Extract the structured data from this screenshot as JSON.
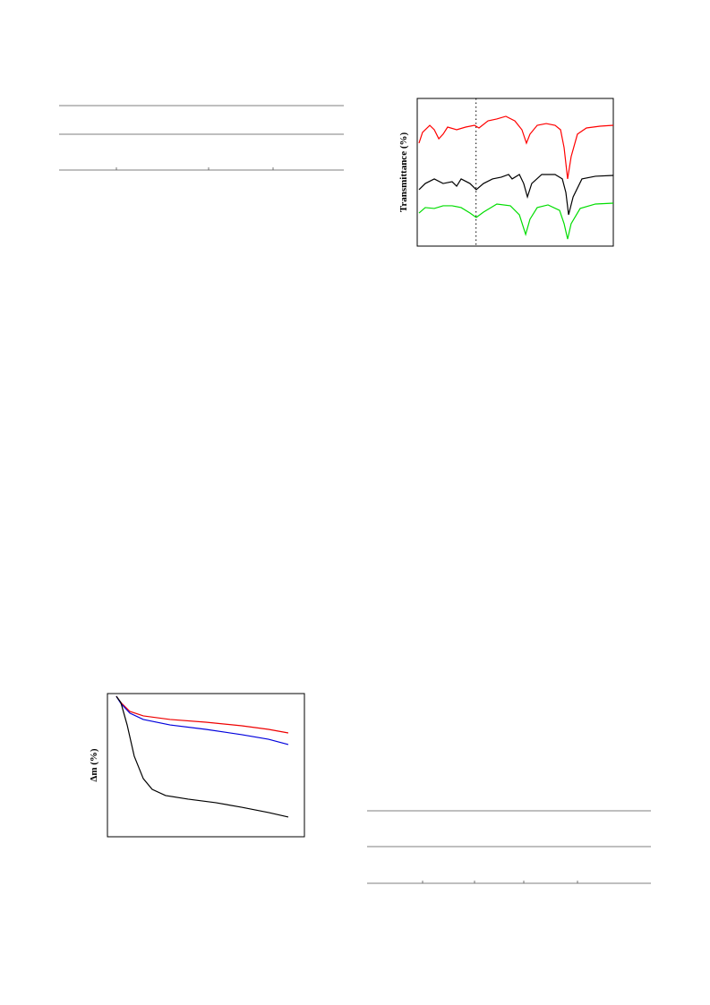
{
  "chart_data": [
    {
      "type": "line",
      "ylabel": "Transmittance (%)",
      "xlim": [
        0,
        100
      ],
      "ylim": [
        0,
        100
      ],
      "vlines": [
        30
      ],
      "series": [
        {
          "color": "#ff0000",
          "x": [
            0.9,
            2.7,
            6.4,
            8.7,
            11.0,
            13.2,
            15.5,
            20.1,
            24.7,
            29.2,
            31.5,
            36.1,
            40.6,
            45.2,
            49.8,
            53.4,
            55.7,
            57.5,
            61.2,
            65.8,
            70.3,
            73.1,
            74.9,
            76.7,
            78.5,
            81.7,
            86.3,
            93.2,
            100
          ],
          "values": [
            69.7,
            77.0,
            81.8,
            78.8,
            72.7,
            75.8,
            80.6,
            78.8,
            80.6,
            81.8,
            80.0,
            84.8,
            86.1,
            87.9,
            84.8,
            78.8,
            69.7,
            75.8,
            81.8,
            83.0,
            81.8,
            78.8,
            66.7,
            45.5,
            60.6,
            75.8,
            80.0,
            81.2,
            81.8
          ]
        },
        {
          "color": "#000000",
          "x": [
            0.9,
            4.1,
            8.7,
            13.2,
            17.8,
            20.1,
            22.4,
            26.9,
            30.1,
            33.8,
            38.4,
            42.9,
            46.6,
            48.4,
            52.1,
            54.3,
            56.2,
            58.4,
            63.5,
            70.3,
            74.0,
            75.8,
            77.2,
            79.5,
            84.0,
            90.9,
            100
          ],
          "values": [
            38.2,
            42.4,
            45.5,
            42.4,
            43.6,
            40.6,
            45.5,
            42.4,
            38.2,
            42.4,
            45.5,
            46.7,
            48.5,
            45.5,
            48.5,
            42.4,
            33.3,
            42.4,
            48.5,
            48.5,
            45.5,
            36.4,
            21.2,
            33.3,
            45.5,
            47.3,
            47.9
          ]
        },
        {
          "color": "#00dd00",
          "x": [
            0.9,
            4.1,
            8.7,
            13.2,
            17.8,
            22.4,
            26.9,
            30.1,
            33.8,
            40.6,
            47.5,
            52.1,
            55.3,
            57.5,
            61.2,
            66.7,
            72.6,
            74.9,
            76.7,
            78.5,
            83.1,
            90.9,
            100
          ],
          "values": [
            22.4,
            26.1,
            25.5,
            27.3,
            27.3,
            26.1,
            22.4,
            19.4,
            23.0,
            28.5,
            27.3,
            21.2,
            7.9,
            18.2,
            26.1,
            27.9,
            24.2,
            15.2,
            4.8,
            15.2,
            25.5,
            28.5,
            29.1
          ]
        }
      ]
    },
    {
      "type": "line",
      "ylabel": "Δm (%)",
      "xlim": [
        0,
        100
      ],
      "ylim": [
        0,
        100
      ],
      "series": [
        {
          "color": "#ee0000",
          "x": [
            4.5,
            6.8,
            11.4,
            18.2,
            31.8,
            50.0,
            68.2,
            81.8,
            91.8
          ],
          "values": [
            98.1,
            93.8,
            87.5,
            84.4,
            81.9,
            80.0,
            77.5,
            75.0,
            72.5
          ]
        },
        {
          "color": "#0000dd",
          "x": [
            4.5,
            6.8,
            11.4,
            18.2,
            31.8,
            50.0,
            68.2,
            81.8,
            91.8
          ],
          "values": [
            98.1,
            93.1,
            86.3,
            81.9,
            78.1,
            75.0,
            71.3,
            68.1,
            64.4
          ]
        },
        {
          "color": "#000000",
          "x": [
            4.5,
            6.8,
            10.0,
            13.6,
            18.2,
            22.7,
            29.5,
            40.9,
            55.0,
            68.2,
            81.8,
            91.8
          ],
          "values": [
            98.1,
            93.8,
            78.1,
            56.3,
            40.6,
            33.1,
            28.8,
            26.3,
            23.8,
            20.6,
            16.9,
            13.8
          ]
        }
      ]
    }
  ]
}
